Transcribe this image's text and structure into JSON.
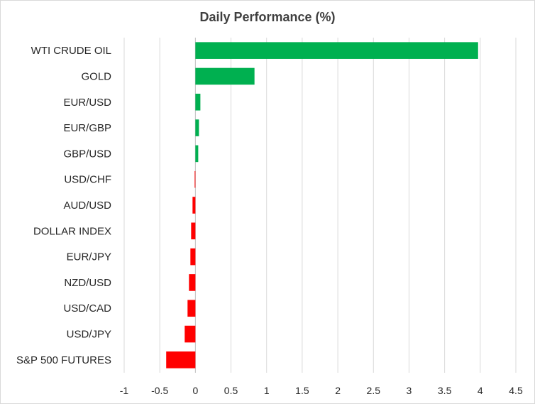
{
  "chart_data": {
    "type": "bar",
    "orientation": "horizontal",
    "title": "Daily Performance (%)",
    "categories": [
      "WTI CRUDE OIL",
      "GOLD",
      "EUR/USD",
      "EUR/GBP",
      "GBP/USD",
      "USD/CHF",
      "AUD/USD",
      "DOLLAR INDEX",
      "EUR/JPY",
      "NZD/USD",
      "USD/CAD",
      "USD/JPY",
      "S&P 500 FUTURES"
    ],
    "values": [
      3.97,
      0.83,
      0.07,
      0.05,
      0.04,
      -0.01,
      -0.04,
      -0.06,
      -0.07,
      -0.09,
      -0.11,
      -0.15,
      -0.41
    ],
    "xlim": [
      -1,
      4.5
    ],
    "xticks": [
      "-1",
      "-0.5",
      "0",
      "0.5",
      "1",
      "1.5",
      "2",
      "2.5",
      "3",
      "3.5",
      "4",
      "4.5"
    ],
    "xtick_values": [
      -1,
      -0.5,
      0,
      0.5,
      1,
      1.5,
      2,
      2.5,
      3,
      3.5,
      4,
      4.5
    ],
    "grid": "vertical",
    "legend": "none",
    "colors": {
      "positive": "#00b050",
      "negative": "#ff0000",
      "grid": "#d9d9d9",
      "zero_axis": "#bfbfbf"
    }
  }
}
